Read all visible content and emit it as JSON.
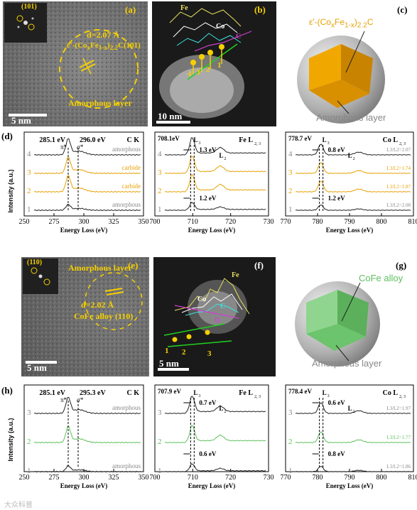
{
  "panels": {
    "a": {
      "letter": "(a)",
      "fft_label": "(101)",
      "d_spacing": "d=2.07 Å",
      "phase_prefix": "ε'-(Co",
      "phase_x": "x",
      "phase_mid": "Fe",
      "phase_1mx": "1-x",
      "phase_close": ")",
      "phase_sub": "2.2",
      "phase_end": "C(101)",
      "amorphous": "Amorphous layer",
      "scale": "5 nm"
    },
    "b": {
      "letter": "(b)",
      "fe": "Fe",
      "co": "Co",
      "c": "C",
      "scale": "10 nm",
      "points": [
        "1",
        "2",
        "3",
        "4"
      ]
    },
    "c": {
      "letter": "(c)",
      "core_prefix": "ε'-(Co",
      "core_x": "x",
      "core_mid": "Fe",
      "core_1mx": "1-x",
      "core_close": ")",
      "core_sub": "2.2",
      "core_end": "C",
      "shell": "Amorphous layer"
    },
    "e": {
      "letter": "(e)",
      "fft_label": "(110)",
      "amorphous": "Amorphous layer",
      "d_spacing": "d=2.02 Å",
      "alloy": "CoFe alloy (110)",
      "scale": "5 nm"
    },
    "f": {
      "letter": "(f)",
      "fe": "Fe",
      "co": "Co",
      "c": "C",
      "o": "O",
      "scale": "5 nm",
      "points": [
        "1",
        "2",
        "3"
      ]
    },
    "g": {
      "letter": "(g)",
      "core": "CoFe alloy",
      "shell": "Amorphous layer"
    }
  },
  "colors": {
    "yellow": "#f5d000",
    "orange": "#e6a000",
    "green": "#5cc05c",
    "gray": "#777777",
    "dark": "#222222"
  },
  "row_d": {
    "letter": "(d)",
    "ylabel": "Intensity (a.u.)",
    "ck": {
      "title": "C K",
      "peak1": "285.1 eV",
      "peak2": "296.0 eV",
      "pi": "π*",
      "sigma": "σ*",
      "series": [
        {
          "num": "4",
          "name": "amorphous"
        },
        {
          "num": "3",
          "name": "carbide"
        },
        {
          "num": "2",
          "name": "carbide"
        },
        {
          "num": "1",
          "name": "amorphous"
        }
      ],
      "xlabel": "Energy Loss (eV)",
      "ticks": [
        "250",
        "275",
        "300",
        "325",
        "350"
      ]
    },
    "fe": {
      "title_main": "Fe L",
      "title_sub": "2, 3",
      "peak": "708.1eV",
      "l3": "L",
      "l3sub": "3",
      "l2": "L",
      "l2sub": "2",
      "shift_top": "1.3 eV",
      "shift_bottom": "1.2 eV",
      "nums": [
        "4",
        "3",
        "2",
        "1"
      ],
      "xlabel": "Energy Loss (eV)",
      "ticks": [
        "700",
        "710",
        "720",
        "730"
      ]
    },
    "co": {
      "title_main": "Co L",
      "title_sub": "2, 3",
      "peak": "778.7 eV",
      "l3": "L",
      "l3sub": "3",
      "l2": "L",
      "l2sub": "2",
      "shift_top": "0.8 eV",
      "shift_bottom": "1.2 eV",
      "ratios": [
        "L3/L2=2.07",
        "L3/L2=1.74",
        "L3/L2=1.87",
        "L3/L2=2.08"
      ],
      "nums": [
        "4",
        "3",
        "2",
        "1"
      ],
      "xlabel": "Energy Loss (eV)",
      "ticks": [
        "770",
        "780",
        "790",
        "800",
        "810"
      ]
    }
  },
  "row_h": {
    "letter": "(h)",
    "ylabel": "Intensity (a.u.)",
    "ck": {
      "title": "C K",
      "peak1": "285.1 eV",
      "peak2": "295.3 eV",
      "pi": "π*",
      "sigma": "σ*",
      "series": [
        {
          "num": "3",
          "name": "amorphous"
        },
        {
          "num": "2",
          "name": ""
        },
        {
          "num": "1",
          "name": "amorphous"
        }
      ],
      "xlabel": "Energy Loss (eV)",
      "ticks": [
        "250",
        "275",
        "300",
        "325",
        "350"
      ]
    },
    "fe": {
      "title_main": "Fe L",
      "title_sub": "2, 3",
      "peak": "707.9 eV",
      "l3": "L",
      "l3sub": "3",
      "l2": "L",
      "l2sub": "2",
      "shift_top": "0.7 eV",
      "shift_bottom": "0.6 eV",
      "nums": [
        "3",
        "2",
        "1"
      ],
      "xlabel": "Energy Loss (eV)",
      "ticks": [
        "700",
        "710",
        "720",
        "730"
      ]
    },
    "co": {
      "title_main": "Co L",
      "title_sub": "2, 3",
      "peak": "778.4 eV",
      "l3": "L",
      "l3sub": "3",
      "l2": "L",
      "l2sub": "2",
      "shift_top": "0.6 eV",
      "shift_bottom": "0.8 eV",
      "ratios": [
        "L3/L2=1.97",
        "L3/L2=1.77",
        "L3/L2=1.86"
      ],
      "nums": [
        "3",
        "2",
        "1"
      ],
      "xlabel": "Energy Loss (eV)",
      "ticks": [
        "770",
        "780",
        "790",
        "800",
        "810"
      ]
    }
  },
  "watermark": "大众科普"
}
